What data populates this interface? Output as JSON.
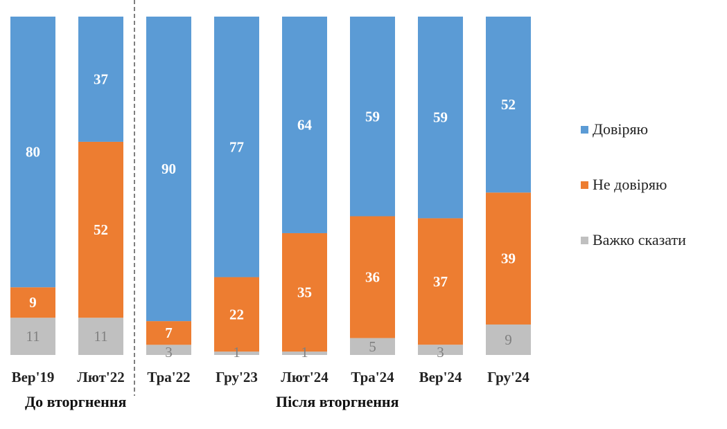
{
  "chart_data": {
    "type": "bar",
    "stacked": true,
    "categories": [
      "Вер'19",
      "Лют'22",
      "Тра'22",
      "Гру'23",
      "Лют'24",
      "Тра'24",
      "Вер'24",
      "Гру'24"
    ],
    "series": [
      {
        "name": "Довіряю",
        "color": "#5b9bd5",
        "values": [
          80,
          37,
          90,
          77,
          64,
          59,
          59,
          52
        ]
      },
      {
        "name": "Не довіряю",
        "color": "#ed7d31",
        "values": [
          9,
          52,
          7,
          22,
          35,
          36,
          37,
          39
        ]
      },
      {
        "name": "Важко сказати",
        "color": "#c0c0c0",
        "values": [
          11,
          11,
          3,
          1,
          1,
          5,
          3,
          9
        ]
      }
    ],
    "ylim": [
      0,
      100
    ],
    "legend": "right",
    "grid": false,
    "groups": [
      {
        "label": "До вторгнення",
        "categories": [
          "Вер'19",
          "Лют'22"
        ]
      },
      {
        "label": "Після вторгнення",
        "categories": [
          "Тра'22",
          "Гру'23",
          "Лют'24",
          "Тра'24",
          "Вер'24",
          "Гру'24"
        ]
      }
    ]
  }
}
